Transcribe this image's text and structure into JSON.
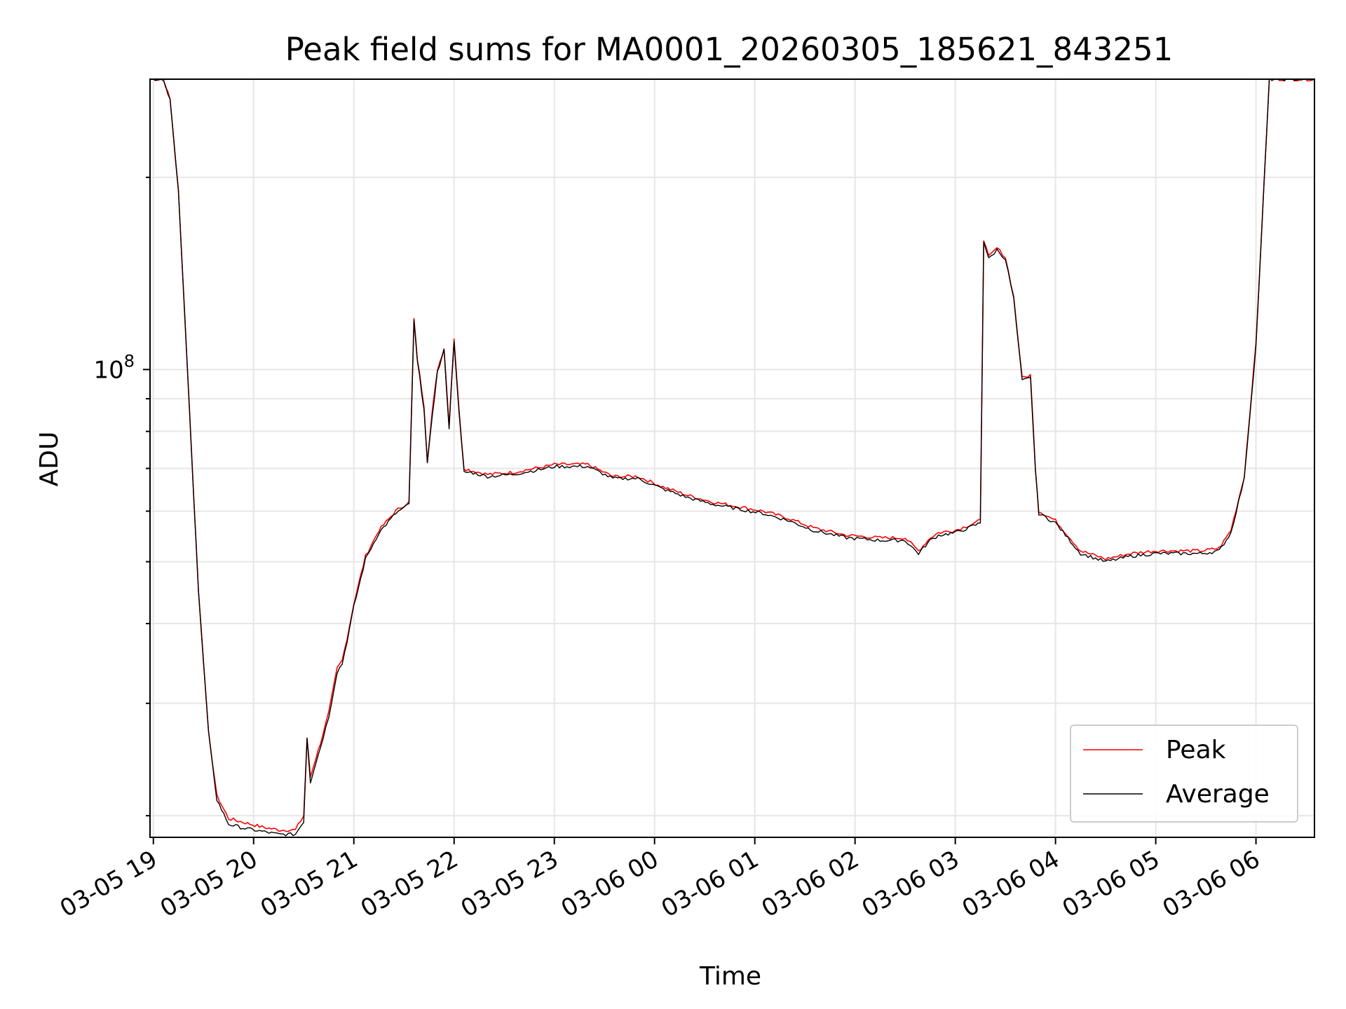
{
  "chart_data": {
    "type": "line",
    "title": "Peak field sums for MA0001_20260305_185621_843251",
    "xlabel": "Time",
    "ylabel": "ADU",
    "x_scale": "time",
    "y_scale": "log",
    "xlim": [
      "2026-03-05 18:58",
      "2026-03-06 06:35"
    ],
    "ylim": [
      18500000,
      285000000
    ],
    "x_ticks": [
      "03-05 19",
      "03-05 20",
      "03-05 21",
      "03-05 22",
      "03-05 23",
      "03-06 00",
      "03-06 01",
      "03-06 02",
      "03-06 03",
      "03-06 04",
      "03-06 05",
      "03-06 06"
    ],
    "y_ticks": [
      {
        "base": "10",
        "exp": "8",
        "value": 100000000
      }
    ],
    "grid": true,
    "legend_position": "lower right",
    "series": [
      {
        "name": "Peak",
        "color": "#ff0000",
        "x": [
          "2026-03-05 18:58",
          "2026-03-05 19:06",
          "2026-03-05 19:10",
          "2026-03-05 19:15",
          "2026-03-05 19:20",
          "2026-03-05 19:27",
          "2026-03-05 19:33",
          "2026-03-05 19:38",
          "2026-03-05 19:45",
          "2026-03-05 19:55",
          "2026-03-05 20:05",
          "2026-03-05 20:15",
          "2026-03-05 20:25",
          "2026-03-05 20:30",
          "2026-03-05 20:32",
          "2026-03-05 20:34",
          "2026-03-05 20:36",
          "2026-03-05 20:40",
          "2026-03-05 20:45",
          "2026-03-05 20:50",
          "2026-03-05 20:53",
          "2026-03-05 20:56",
          "2026-03-05 21:00",
          "2026-03-05 21:07",
          "2026-03-05 21:15",
          "2026-03-05 21:25",
          "2026-03-05 21:33",
          "2026-03-05 21:36",
          "2026-03-05 21:38",
          "2026-03-05 21:42",
          "2026-03-05 21:44",
          "2026-03-05 21:47",
          "2026-03-05 21:50",
          "2026-03-05 21:54",
          "2026-03-05 21:57",
          "2026-03-05 22:00",
          "2026-03-05 22:03",
          "2026-03-05 22:06",
          "2026-03-05 22:10",
          "2026-03-05 22:20",
          "2026-03-05 22:35",
          "2026-03-05 22:55",
          "2026-03-05 23:00",
          "2026-03-05 23:20",
          "2026-03-05 23:35",
          "2026-03-05 23:50",
          "2026-03-06 00:05",
          "2026-03-06 00:20",
          "2026-03-06 00:35",
          "2026-03-06 00:50",
          "2026-03-06 01:05",
          "2026-03-06 01:20",
          "2026-03-06 01:35",
          "2026-03-06 01:55",
          "2026-03-06 02:15",
          "2026-03-06 02:30",
          "2026-03-06 02:38",
          "2026-03-06 02:45",
          "2026-03-06 02:50",
          "2026-03-06 03:00",
          "2026-03-06 03:08",
          "2026-03-06 03:15",
          "2026-03-06 03:17",
          "2026-03-06 03:20",
          "2026-03-06 03:25",
          "2026-03-06 03:30",
          "2026-03-06 03:35",
          "2026-03-06 03:40",
          "2026-03-06 03:45",
          "2026-03-06 03:48",
          "2026-03-06 03:50",
          "2026-03-06 04:00",
          "2026-03-06 04:15",
          "2026-03-06 04:30",
          "2026-03-06 04:45",
          "2026-03-06 05:00",
          "2026-03-06 05:15",
          "2026-03-06 05:28",
          "2026-03-06 05:38",
          "2026-03-06 05:45",
          "2026-03-06 05:53",
          "2026-03-06 06:00",
          "2026-03-06 06:08",
          "2026-03-06 06:35"
        ],
        "y": [
          285000000,
          285000000,
          265000000,
          190000000,
          105000000,
          45000000,
          27000000,
          21500000,
          19800000,
          19500000,
          19200000,
          19000000,
          19000000,
          20000000,
          26500000,
          23000000,
          24000000,
          26000000,
          29000000,
          34000000,
          35000000,
          38000000,
          43000000,
          51000000,
          56000000,
          60000000,
          62000000,
          120000000,
          104000000,
          88000000,
          72000000,
          86000000,
          100000000,
          108000000,
          82000000,
          112000000,
          86000000,
          70000000,
          69500000,
          68500000,
          69000000,
          70500000,
          71000000,
          71000000,
          68000000,
          68000000,
          65500000,
          63500000,
          62000000,
          61000000,
          60000000,
          58500000,
          56500000,
          55000000,
          54500000,
          54500000,
          52000000,
          54500000,
          55500000,
          56000000,
          57000000,
          58000000,
          160000000,
          150000000,
          155000000,
          150000000,
          130000000,
          97000000,
          98000000,
          70000000,
          60000000,
          58000000,
          52000000,
          50500000,
          51500000,
          52000000,
          52000000,
          52000000,
          52500000,
          56000000,
          68000000,
          110000000,
          285000000,
          285000000
        ]
      },
      {
        "name": "Average",
        "color": "#000000",
        "x": [
          "2026-03-05 18:58",
          "2026-03-05 19:06",
          "2026-03-05 19:10",
          "2026-03-05 19:15",
          "2026-03-05 19:20",
          "2026-03-05 19:27",
          "2026-03-05 19:33",
          "2026-03-05 19:38",
          "2026-03-05 19:45",
          "2026-03-05 19:55",
          "2026-03-05 20:05",
          "2026-03-05 20:15",
          "2026-03-05 20:25",
          "2026-03-05 20:30",
          "2026-03-05 20:32",
          "2026-03-05 20:34",
          "2026-03-05 20:36",
          "2026-03-05 20:40",
          "2026-03-05 20:45",
          "2026-03-05 20:50",
          "2026-03-05 20:53",
          "2026-03-05 20:56",
          "2026-03-05 21:00",
          "2026-03-05 21:07",
          "2026-03-05 21:15",
          "2026-03-05 21:25",
          "2026-03-05 21:33",
          "2026-03-05 21:36",
          "2026-03-05 21:38",
          "2026-03-05 21:42",
          "2026-03-05 21:44",
          "2026-03-05 21:47",
          "2026-03-05 21:50",
          "2026-03-05 21:54",
          "2026-03-05 21:57",
          "2026-03-05 22:00",
          "2026-03-05 22:03",
          "2026-03-05 22:06",
          "2026-03-05 22:10",
          "2026-03-05 22:20",
          "2026-03-05 22:35",
          "2026-03-05 22:55",
          "2026-03-05 23:00",
          "2026-03-05 23:20",
          "2026-03-05 23:35",
          "2026-03-05 23:50",
          "2026-03-06 00:05",
          "2026-03-06 00:20",
          "2026-03-06 00:35",
          "2026-03-06 00:50",
          "2026-03-06 01:05",
          "2026-03-06 01:20",
          "2026-03-06 01:35",
          "2026-03-06 01:55",
          "2026-03-06 02:15",
          "2026-03-06 02:30",
          "2026-03-06 02:38",
          "2026-03-06 02:45",
          "2026-03-06 02:50",
          "2026-03-06 03:00",
          "2026-03-06 03:08",
          "2026-03-06 03:15",
          "2026-03-06 03:17",
          "2026-03-06 03:20",
          "2026-03-06 03:25",
          "2026-03-06 03:30",
          "2026-03-06 03:35",
          "2026-03-06 03:40",
          "2026-03-06 03:45",
          "2026-03-06 03:48",
          "2026-03-06 03:50",
          "2026-03-06 04:00",
          "2026-03-06 04:15",
          "2026-03-06 04:30",
          "2026-03-06 04:45",
          "2026-03-06 05:00",
          "2026-03-06 05:15",
          "2026-03-06 05:28",
          "2026-03-06 05:38",
          "2026-03-06 05:45",
          "2026-03-06 05:53",
          "2026-03-06 06:00",
          "2026-03-06 06:08",
          "2026-03-06 06:35"
        ],
        "y": [
          285000000,
          285000000,
          265000000,
          190000000,
          105000000,
          45000000,
          27000000,
          21200000,
          19400000,
          19100000,
          18900000,
          18700000,
          18700000,
          19600000,
          26500000,
          22600000,
          23600000,
          25600000,
          28600000,
          33600000,
          34600000,
          37600000,
          42500000,
          50500000,
          55500000,
          59500000,
          61500000,
          119000000,
          103000000,
          87000000,
          71000000,
          85000000,
          99000000,
          107000000,
          81000000,
          111000000,
          85000000,
          69000000,
          69000000,
          68000000,
          68500000,
          70000000,
          70500000,
          70500000,
          67500000,
          67500000,
          65000000,
          63000000,
          61500000,
          60500000,
          59500000,
          58000000,
          56000000,
          54500000,
          54000000,
          54000000,
          51500000,
          54000000,
          55000000,
          55500000,
          56500000,
          57500000,
          159000000,
          149000000,
          154000000,
          149000000,
          129000000,
          96000000,
          97000000,
          69500000,
          59500000,
          57500000,
          51500000,
          50000000,
          51000000,
          51500000,
          51500000,
          51500000,
          52000000,
          55500000,
          67500000,
          109000000,
          285000000,
          285000000
        ]
      }
    ]
  }
}
